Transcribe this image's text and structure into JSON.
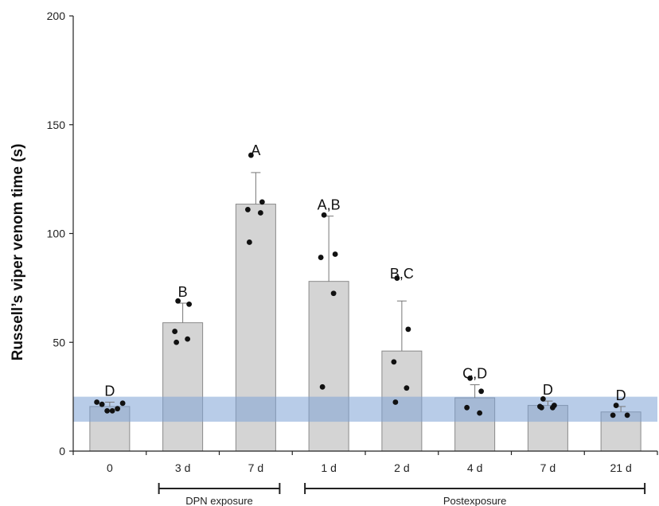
{
  "chart_data": {
    "type": "bar",
    "ylabel": "Russell’s viper venom time (s)",
    "xlabel": "",
    "ylim": [
      0,
      200
    ],
    "yticks": [
      0,
      50,
      100,
      150,
      200
    ],
    "categories": [
      "0",
      "3 d",
      "7 d",
      "1 d",
      "2 d",
      "4 d",
      "7 d",
      "21 d"
    ],
    "values": [
      20.5,
      59,
      113.5,
      78,
      46,
      24.5,
      21,
      18
    ],
    "errors": [
      2,
      9,
      14.5,
      30,
      23,
      6,
      2,
      2.5
    ],
    "significance_labels": [
      "D",
      "B",
      "A",
      "A,B",
      "B,C",
      "C,D",
      "D",
      "D"
    ],
    "points": [
      [
        22.5,
        21.5,
        18.5,
        18.5,
        19.5,
        22
      ],
      [
        69,
        67.5,
        55,
        51.5,
        50
      ],
      [
        136,
        114.5,
        111,
        109.5,
        96
      ],
      [
        108.5,
        90.5,
        89,
        72.5,
        29.5
      ],
      [
        79.5,
        56,
        41,
        29,
        22.5
      ],
      [
        33.5,
        27.5,
        20,
        17.5
      ],
      [
        24,
        21,
        20.5,
        20,
        20
      ],
      [
        21,
        16.5,
        16.5
      ]
    ],
    "reference_band": [
      13.5,
      25
    ],
    "group_brackets": [
      {
        "label": "DPN exposure",
        "from": 1,
        "to": 2
      },
      {
        "label": "Postexposure",
        "from": 3,
        "to": 7
      }
    ],
    "grid": false,
    "colors": {
      "bar_fill": "#d4d4d4",
      "bar_stroke": "#8a8a8a",
      "band": "#7ea3d6",
      "point": "#111111",
      "axis": "#222222"
    }
  }
}
